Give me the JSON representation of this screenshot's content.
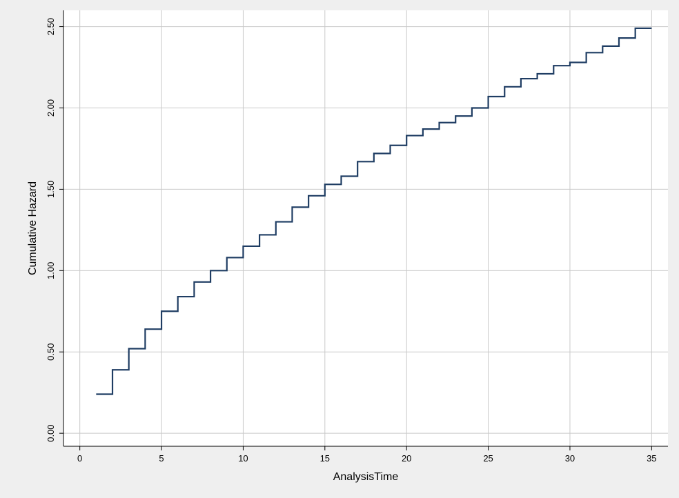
{
  "chart_data": {
    "type": "line",
    "step": true,
    "title": "",
    "xlabel": "AnalysisTime",
    "ylabel": "Cumulative Hazard",
    "xlim": [
      -1,
      36
    ],
    "ylim": [
      -0.08,
      2.6
    ],
    "xticks": [
      0,
      5,
      10,
      15,
      20,
      25,
      30,
      35
    ],
    "xtick_labels": [
      "0",
      "5",
      "10",
      "15",
      "20",
      "25",
      "30",
      "35"
    ],
    "yticks": [
      0,
      0.5,
      1.0,
      1.5,
      2.0,
      2.5
    ],
    "ytick_labels": [
      "0.00",
      "0.50",
      "1.00",
      "1.50",
      "2.00",
      "2.50"
    ],
    "grid": true,
    "legend": "none",
    "colors": {
      "background": "#efefef",
      "plot_background": "#ffffff",
      "grid": "#c9c9c9",
      "axis": "#000000",
      "series": "#1f3d63"
    },
    "series": [
      {
        "x": [
          1,
          2,
          3,
          4,
          5,
          6,
          7,
          8,
          9,
          10,
          11,
          12,
          13,
          14,
          15,
          16,
          17,
          18,
          19,
          20,
          21,
          22,
          23,
          24,
          25,
          26,
          27,
          28,
          29,
          30,
          31,
          32,
          33,
          34,
          35
        ],
        "y": [
          0.24,
          0.39,
          0.52,
          0.64,
          0.75,
          0.84,
          0.93,
          1.0,
          1.08,
          1.15,
          1.22,
          1.3,
          1.39,
          1.46,
          1.53,
          1.58,
          1.67,
          1.72,
          1.77,
          1.83,
          1.87,
          1.91,
          1.95,
          2.0,
          2.07,
          2.13,
          2.18,
          2.21,
          2.26,
          2.28,
          2.34,
          2.38,
          2.43,
          2.49,
          2.49
        ]
      }
    ]
  }
}
